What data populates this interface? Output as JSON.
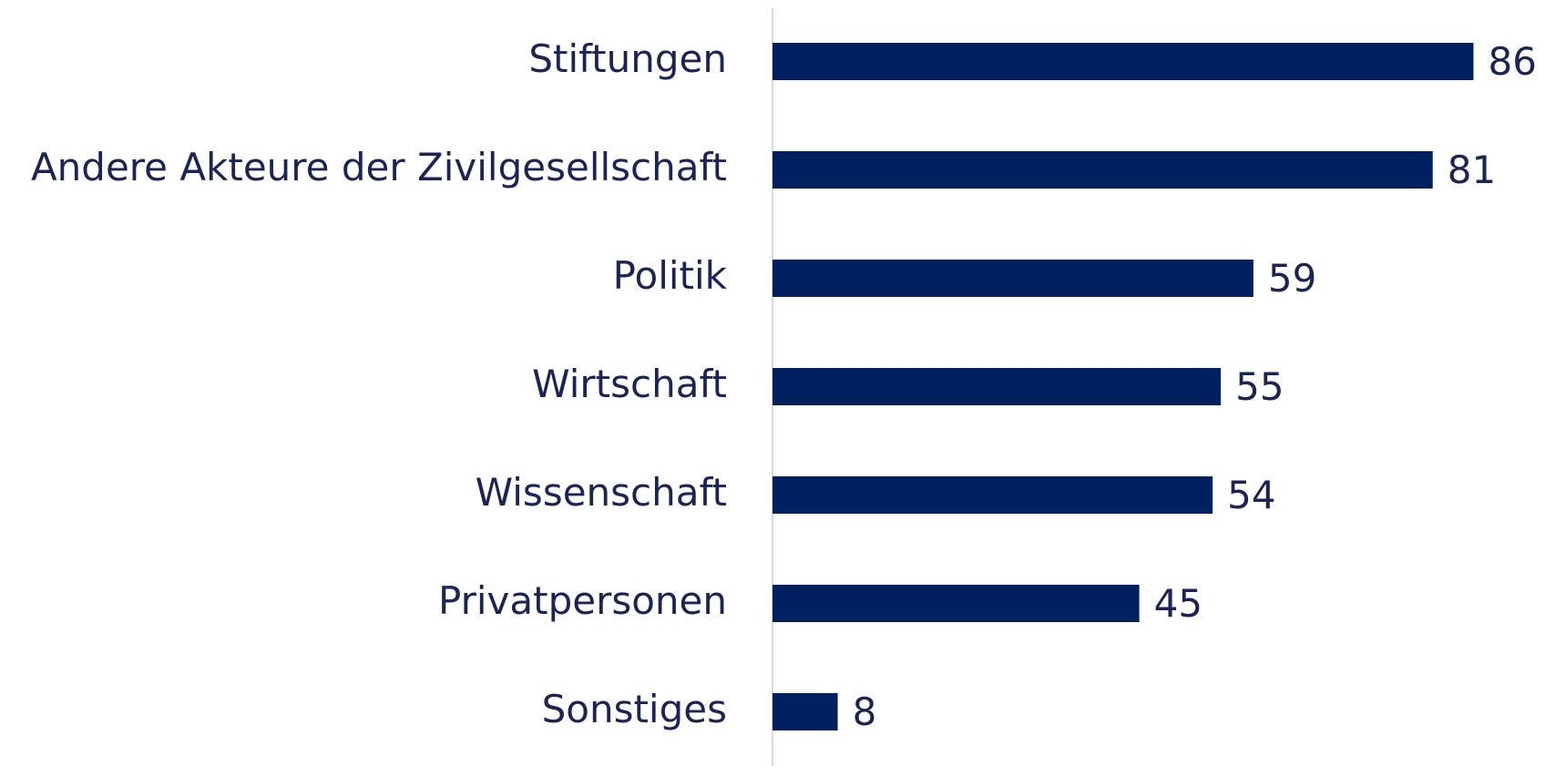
{
  "chart_data": {
    "type": "bar",
    "orientation": "horizontal",
    "categories": [
      "Stiftungen",
      "Andere Akteure der Zivilgesellschaft",
      "Politik",
      "Wirtschaft",
      "Wissenschaft",
      "Privatpersonen",
      "Sonstiges"
    ],
    "values": [
      86,
      81,
      59,
      55,
      54,
      45,
      8
    ],
    "color": "#002060",
    "xlim": [
      0,
      95
    ]
  }
}
